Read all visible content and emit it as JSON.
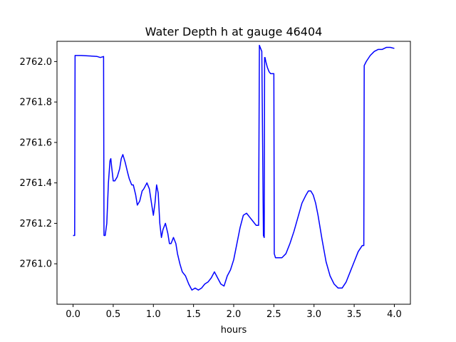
{
  "chart_data": {
    "type": "line",
    "title": "Water Depth h at gauge 46404",
    "xlabel": "hours",
    "ylabel": "",
    "xlim": [
      -0.2,
      4.2
    ],
    "ylim": [
      2760.8,
      2762.1
    ],
    "xticks": [
      0.0,
      0.5,
      1.0,
      1.5,
      2.0,
      2.5,
      3.0,
      3.5,
      4.0
    ],
    "xtick_labels": [
      "0.0",
      "0.5",
      "1.0",
      "1.5",
      "2.0",
      "2.5",
      "3.0",
      "3.5",
      "4.0"
    ],
    "yticks": [
      2761.0,
      2761.2,
      2761.4,
      2761.6,
      2761.8,
      2762.0
    ],
    "ytick_labels": [
      "2761.0",
      "2761.2",
      "2761.4",
      "2761.6",
      "2761.8",
      "2762.0"
    ],
    "grid": false,
    "series": [
      {
        "color": "#0000ff",
        "x": [
          0.0,
          0.02,
          0.025,
          0.1,
          0.2,
          0.3,
          0.34,
          0.38,
          0.385,
          0.4,
          0.42,
          0.44,
          0.46,
          0.47,
          0.48,
          0.5,
          0.52,
          0.55,
          0.58,
          0.6,
          0.62,
          0.65,
          0.68,
          0.7,
          0.73,
          0.75,
          0.78,
          0.8,
          0.83,
          0.86,
          0.88,
          0.92,
          0.95,
          0.98,
          1.0,
          1.02,
          1.04,
          1.06,
          1.08,
          1.1,
          1.12,
          1.15,
          1.18,
          1.2,
          1.22,
          1.25,
          1.28,
          1.3,
          1.33,
          1.36,
          1.4,
          1.44,
          1.48,
          1.52,
          1.56,
          1.6,
          1.64,
          1.68,
          1.72,
          1.76,
          1.8,
          1.84,
          1.88,
          1.92,
          1.96,
          2.0,
          2.04,
          2.08,
          2.12,
          2.16,
          2.2,
          2.24,
          2.28,
          2.31,
          2.32,
          2.33,
          2.35,
          2.37,
          2.38,
          2.385,
          2.39,
          2.4,
          2.42,
          2.44,
          2.46,
          2.5,
          2.505,
          2.52,
          2.55,
          2.6,
          2.65,
          2.7,
          2.75,
          2.8,
          2.85,
          2.9,
          2.93,
          2.96,
          2.99,
          3.02,
          3.05,
          3.1,
          3.15,
          3.2,
          3.25,
          3.3,
          3.35,
          3.4,
          3.45,
          3.5,
          3.55,
          3.6,
          3.62,
          3.625,
          3.65,
          3.7,
          3.75,
          3.8,
          3.85,
          3.9,
          3.95,
          4.0
        ],
        "y": [
          2761.14,
          2761.14,
          2762.03,
          2762.03,
          2762.028,
          2762.025,
          2762.02,
          2762.025,
          2761.14,
          2761.14,
          2761.2,
          2761.4,
          2761.51,
          2761.52,
          2761.48,
          2761.41,
          2761.41,
          2761.43,
          2761.47,
          2761.52,
          2761.54,
          2761.5,
          2761.45,
          2761.42,
          2761.39,
          2761.39,
          2761.34,
          2761.29,
          2761.31,
          2761.36,
          2761.37,
          2761.4,
          2761.37,
          2761.29,
          2761.24,
          2761.3,
          2761.39,
          2761.35,
          2761.2,
          2761.13,
          2761.17,
          2761.2,
          2761.15,
          2761.1,
          2761.1,
          2761.13,
          2761.1,
          2761.05,
          2761.0,
          2760.96,
          2760.94,
          2760.9,
          2760.87,
          2760.88,
          2760.87,
          2760.88,
          2760.9,
          2760.91,
          2760.93,
          2760.96,
          2760.93,
          2760.9,
          2760.89,
          2760.94,
          2760.97,
          2761.02,
          2761.1,
          2761.18,
          2761.24,
          2761.25,
          2761.23,
          2761.21,
          2761.19,
          2761.19,
          2762.08,
          2762.07,
          2762.05,
          2761.14,
          2761.13,
          2762.02,
          2762.02,
          2762.0,
          2761.97,
          2761.95,
          2761.94,
          2761.94,
          2761.05,
          2761.03,
          2761.03,
          2761.03,
          2761.05,
          2761.1,
          2761.16,
          2761.23,
          2761.3,
          2761.34,
          2761.36,
          2761.36,
          2761.34,
          2761.3,
          2761.24,
          2761.12,
          2761.01,
          2760.94,
          2760.9,
          2760.88,
          2760.88,
          2760.91,
          2760.96,
          2761.01,
          2761.06,
          2761.09,
          2761.09,
          2761.98,
          2762.0,
          2762.03,
          2762.05,
          2762.06,
          2762.06,
          2762.07,
          2762.07,
          2762.065
        ]
      }
    ]
  }
}
